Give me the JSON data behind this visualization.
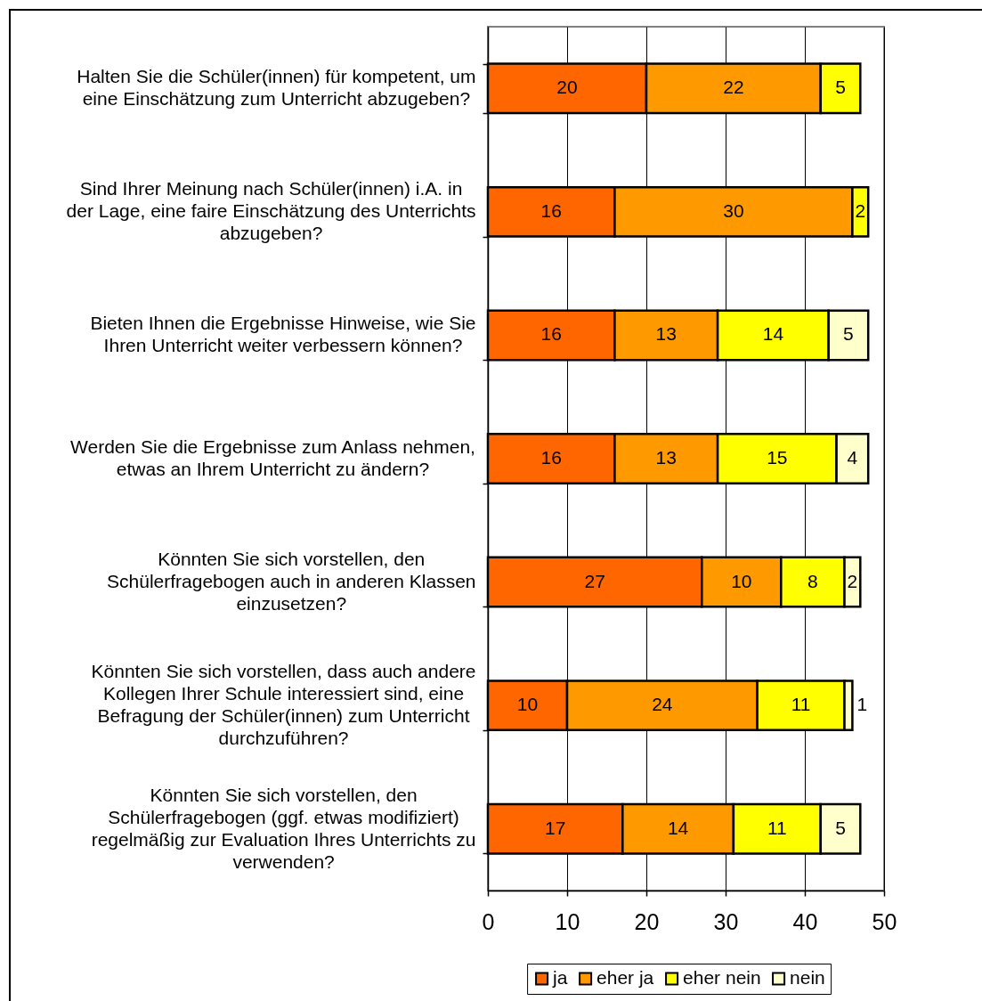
{
  "chart_data": {
    "type": "bar",
    "orientation": "horizontal",
    "stacked": true,
    "categories": [
      "Halten Sie die Schüler(innen) für kompetent, um eine Einschätzung zum Unterricht abzugeben?",
      "Sind Ihrer Meinung nach Schüler(innen) i.A. in der Lage, eine faire Einschätzung des Unterrichts abzugeben?",
      "Bieten Ihnen die Ergebnisse Hinweise, wie Sie Ihren Unterricht weiter verbessern können?",
      "Werden Sie die Ergebnisse zum Anlass nehmen, etwas an Ihrem Unterricht zu ändern?",
      "Könnten Sie sich vorstellen, den Schülerfragebogen auch in anderen Klassen einzusetzen?",
      "Könnten Sie sich vorstellen, dass auch andere Kollegen Ihrer Schule interessiert sind, eine Befragung der Schüler(innen) zum Unterricht durchzuführen?",
      "Könnten Sie sich vorstellen, den Schülerfragebogen (ggf. etwas modifiziert) regelmäßig zur Evaluation Ihres Unterrichts zu verwenden?"
    ],
    "series": [
      {
        "name": "ja",
        "color": "#ff6600",
        "values": [
          20,
          16,
          16,
          16,
          27,
          10,
          17
        ]
      },
      {
        "name": "eher ja",
        "color": "#ff9900",
        "values": [
          22,
          30,
          13,
          13,
          10,
          24,
          14
        ]
      },
      {
        "name": "eher nein",
        "color": "#ffff00",
        "values": [
          5,
          2,
          14,
          15,
          8,
          11,
          11
        ]
      },
      {
        "name": "nein",
        "color": "#ffffcc",
        "values": [
          null,
          null,
          5,
          4,
          2,
          1,
          5
        ]
      }
    ],
    "xlim": [
      0,
      50
    ],
    "xticks": [
      0,
      10,
      20,
      30,
      40,
      50
    ],
    "grid": "x",
    "legend": "bottom",
    "data_labels": true
  }
}
